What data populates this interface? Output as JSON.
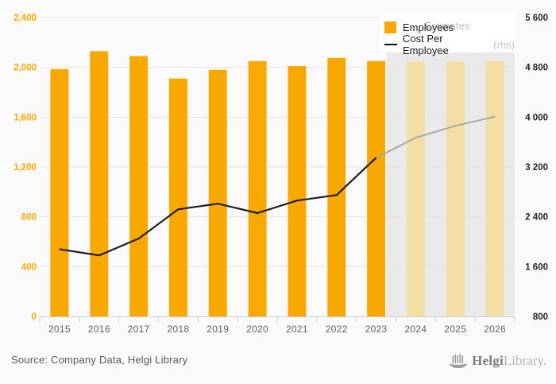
{
  "page": {
    "background": "#fafafa"
  },
  "legend": {
    "items": [
      {
        "label": "Employees",
        "type": "swatch",
        "color": "#F9A800"
      },
      {
        "label": "Cost Per Employee",
        "suffix": "(rhs)",
        "type": "line",
        "color": "#111111"
      }
    ]
  },
  "footer": {
    "source": "Source: Company Data, Helgi Library",
    "logo_primary": "Helgi",
    "logo_secondary": "Library."
  },
  "chart_data": {
    "type": "bar",
    "title": "",
    "categories": [
      "2015",
      "2016",
      "2017",
      "2018",
      "2019",
      "2020",
      "2021",
      "2022",
      "2023",
      "2024",
      "2025",
      "2026"
    ],
    "series": [
      {
        "name": "Employees",
        "type": "bar",
        "axis": "left",
        "values": [
          1985,
          2130,
          2090,
          1910,
          1980,
          2050,
          2010,
          2075,
          2050,
          2045,
          2045,
          2050
        ],
        "color": "#F9A800",
        "estimate_color": "#F3DEA4"
      },
      {
        "name": "Cost Per Employee (rhs)",
        "type": "line",
        "axis": "right",
        "values": [
          1880,
          1780,
          2050,
          2520,
          2610,
          2460,
          2660,
          2750,
          3350,
          3670,
          3860,
          4010
        ],
        "color": "#1c1c1c",
        "estimate_color": "#a8a8a8"
      }
    ],
    "estimate_start_index": 9,
    "left_axis": {
      "min": 0,
      "max": 2400,
      "tick_labels": [
        "0",
        "400",
        "800",
        "1,200",
        "1,600",
        "2,000",
        "2,400"
      ],
      "color": "#F9A800"
    },
    "right_axis": {
      "min": 800,
      "max": 5600,
      "tick_labels": [
        "800",
        "1 600",
        "2 400",
        "3 200",
        "4 000",
        "4 800",
        "5 600"
      ],
      "color": "#262626"
    },
    "estimates": {
      "label": "Estimates",
      "start_category": "2024",
      "region_color": "#eaeaea"
    },
    "grid": true,
    "legend_position": "top-right",
    "xlabel": "",
    "ylabel": ""
  }
}
